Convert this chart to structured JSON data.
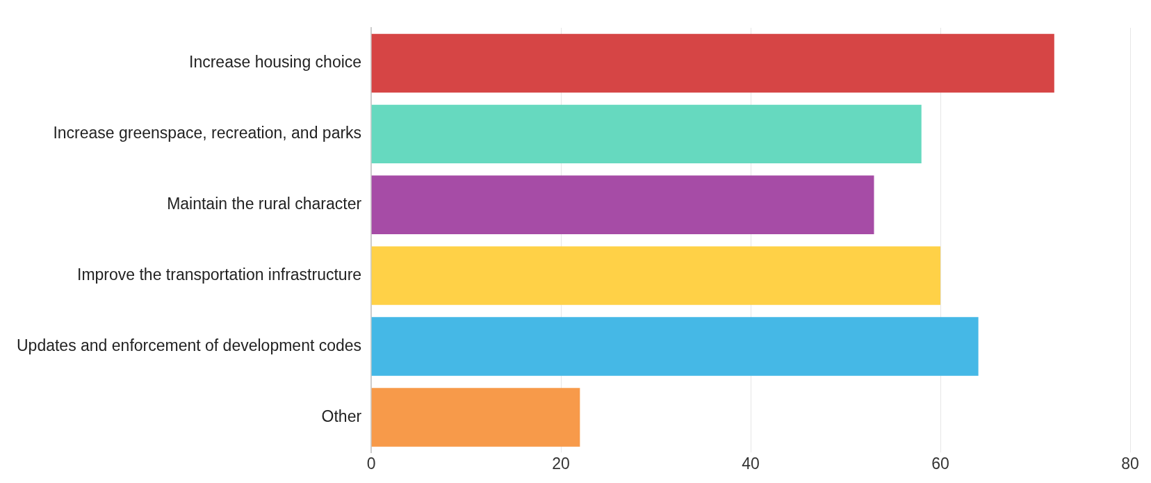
{
  "chart_data": {
    "type": "bar",
    "orientation": "horizontal",
    "categories": [
      "Increase housing choice",
      "Increase greenspace, recreation, and parks",
      "Maintain the rural character",
      "Improve the transportation infrastructure",
      "Updates and enforcement of development codes",
      "Other"
    ],
    "values": [
      72,
      58,
      53,
      60,
      64,
      22
    ],
    "colors": [
      "#d64545",
      "#66d9bf",
      "#a64ca6",
      "#ffd147",
      "#45b8e6",
      "#f79a4a"
    ],
    "xlim": [
      0,
      80
    ],
    "xticks": [
      0,
      20,
      40,
      60,
      80
    ],
    "grid": "x",
    "legend": false
  }
}
